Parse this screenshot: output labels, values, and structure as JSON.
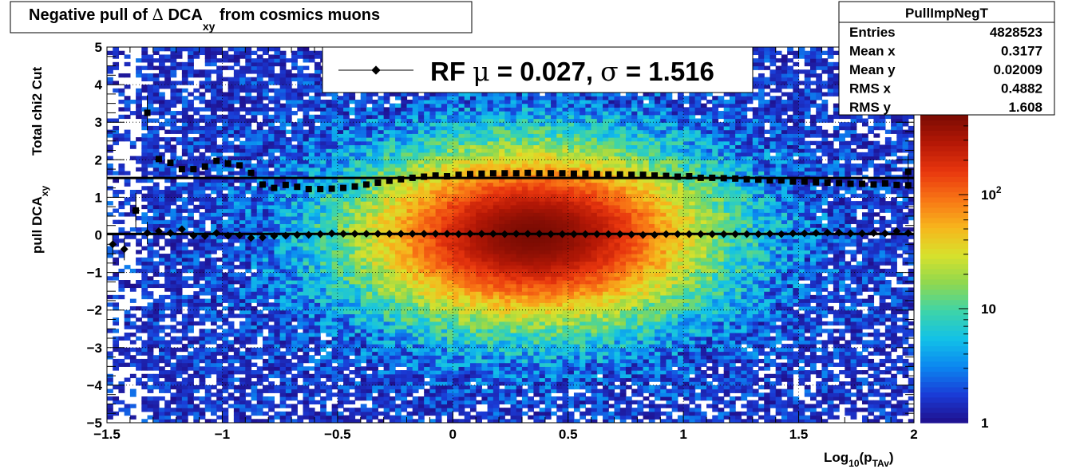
{
  "title": {
    "prefix": "Negative pull of ",
    "delta": "Δ",
    "dca": " DCA",
    "sub": "xy",
    "suffix": " from cosmics muons"
  },
  "stats": {
    "name": "PullImpNegT",
    "rows": [
      {
        "label": "Entries",
        "value": "4828523"
      },
      {
        "label": "Mean x",
        "value": "0.3177"
      },
      {
        "label": "Mean y",
        "value": "0.02009"
      },
      {
        "label": "RMS x",
        "value": "0.4882"
      },
      {
        "label": "RMS y",
        "value": "1.608"
      }
    ]
  },
  "legend": {
    "rf": "RF ",
    "mu": "μ",
    "mid": " =  0.027, ",
    "sigma": "σ",
    "end": " =   1.516"
  },
  "ylabel": {
    "line1": "Total chi2 Cut",
    "line2": "pull DCA",
    "line2_sub": "xy"
  },
  "xlabel": {
    "main": "Log",
    "sub1": "10",
    "p": "(p",
    "sub2": "TAv",
    "close": ")"
  },
  "colorbar": {
    "labels": [
      {
        "text": "1",
        "value": 1
      },
      {
        "text": "10",
        "value": 10
      },
      {
        "text": "10",
        "value": 100,
        "exp": "2"
      }
    ],
    "colors": [
      "#1f0f8c",
      "#1a3bd6",
      "#0b86f0",
      "#12c1e8",
      "#3ed4a8",
      "#8fd84f",
      "#d8e12c",
      "#f7b51c",
      "#f87415",
      "#e8360e",
      "#b51806",
      "#7a0b03"
    ]
  },
  "chart_data": {
    "type": "heatmap",
    "xlim": [
      -1.5,
      2
    ],
    "ylim": [
      -5,
      5
    ],
    "xticks": [
      {
        "v": -1.5,
        "t": "−1.5"
      },
      {
        "v": -1,
        "t": "−1"
      },
      {
        "v": -0.5,
        "t": "−0.5"
      },
      {
        "v": 0,
        "t": "0"
      },
      {
        "v": 0.5,
        "t": "0.5"
      },
      {
        "v": 1,
        "t": "1"
      },
      {
        "v": 1.5,
        "t": "1.5"
      },
      {
        "v": 2,
        "t": "2"
      }
    ],
    "yticks": [
      {
        "v": -5,
        "t": "−5"
      },
      {
        "v": -4,
        "t": "−4"
      },
      {
        "v": -3,
        "t": "−3"
      },
      {
        "v": -2,
        "t": "−2"
      },
      {
        "v": -1,
        "t": "−1"
      },
      {
        "v": 0,
        "t": "0"
      },
      {
        "v": 1,
        "t": "1"
      },
      {
        "v": 2,
        "t": "2"
      },
      {
        "v": 3,
        "t": "3"
      },
      {
        "v": 4,
        "t": "4"
      },
      {
        "v": 5,
        "t": "5"
      }
    ],
    "grid": true,
    "zscale": "log",
    "zlim": [
      1,
      500
    ],
    "sigma_points": {
      "x": [
        -1.275,
        -1.225,
        -1.175,
        -1.125,
        -1.075,
        -1.025,
        -0.975,
        -0.925,
        -0.875,
        -0.825,
        -0.775,
        -0.725,
        -0.675,
        -0.625,
        -0.575,
        -0.525,
        -0.475,
        -0.425,
        -0.375,
        -0.325,
        -0.275,
        -0.225,
        -0.175,
        -0.125,
        -0.075,
        -0.025,
        0.025,
        0.075,
        0.125,
        0.175,
        0.225,
        0.275,
        0.325,
        0.375,
        0.425,
        0.475,
        0.525,
        0.575,
        0.625,
        0.675,
        0.725,
        0.775,
        0.825,
        0.875,
        0.925,
        0.975,
        1.025,
        1.075,
        1.125,
        1.175,
        1.225,
        1.275,
        1.325,
        1.375,
        1.425,
        1.475,
        1.525,
        1.575,
        1.625,
        1.675,
        1.725,
        1.775,
        1.825,
        1.875,
        1.925,
        1.975
      ],
      "y": [
        2.02,
        1.92,
        1.75,
        1.75,
        1.82,
        1.97,
        1.9,
        1.85,
        1.65,
        1.34,
        1.25,
        1.33,
        1.28,
        1.22,
        1.22,
        1.23,
        1.25,
        1.29,
        1.34,
        1.39,
        1.44,
        1.48,
        1.52,
        1.55,
        1.58,
        1.56,
        1.6,
        1.62,
        1.63,
        1.64,
        1.64,
        1.64,
        1.65,
        1.64,
        1.64,
        1.64,
        1.63,
        1.63,
        1.62,
        1.61,
        1.61,
        1.6,
        1.6,
        1.58,
        1.57,
        1.55,
        1.56,
        1.52,
        1.52,
        1.51,
        1.5,
        1.48,
        1.47,
        1.45,
        1.45,
        1.42,
        1.42,
        1.4,
        1.39,
        1.38,
        1.36,
        1.36,
        1.34,
        1.37,
        1.33,
        1.32
      ],
      "extra": [
        {
          "x": -1.325,
          "y": 3.25
        },
        {
          "x": -1.375,
          "y": 0.65
        },
        {
          "x": 1.975,
          "y": 1.68
        }
      ]
    },
    "sigma_fit": 1.516,
    "mu_points": {
      "x": [
        -1.475,
        -1.425,
        -1.375,
        -1.325,
        -1.275,
        -1.225,
        -1.175,
        -1.125,
        -1.075,
        -1.025,
        -0.975,
        -0.925,
        -0.875,
        -0.825,
        -0.775,
        -0.725,
        -0.675,
        -0.625,
        -0.575,
        -0.525,
        -0.475,
        -0.425,
        -0.375,
        -0.325,
        -0.275,
        -0.225,
        -0.175,
        -0.125,
        -0.075,
        -0.025,
        0.025,
        0.075,
        0.125,
        0.175,
        0.225,
        0.275,
        0.325,
        0.375,
        0.425,
        0.475,
        0.525,
        0.575,
        0.625,
        0.675,
        0.725,
        0.775,
        0.825,
        0.875,
        0.925,
        0.975,
        1.025,
        1.075,
        1.125,
        1.175,
        1.225,
        1.275,
        1.325,
        1.375,
        1.425,
        1.475,
        1.525,
        1.575,
        1.625,
        1.675,
        1.725,
        1.775,
        1.825,
        1.875,
        1.925,
        1.975
      ],
      "y": [
        -0.25,
        -0.38,
        0.65,
        0.05,
        0.1,
        0.05,
        0.15,
        -0.02,
        -0.03,
        0.05,
        -0.02,
        -0.01,
        -0.08,
        -0.07,
        -0.03,
        -0.02,
        0.0,
        0.0,
        0.02,
        0.04,
        0.03,
        0.03,
        0.03,
        0.03,
        0.03,
        0.03,
        0.03,
        0.03,
        0.03,
        0.03,
        0.02,
        0.03,
        0.03,
        0.03,
        0.02,
        0.03,
        0.03,
        0.03,
        0.02,
        0.02,
        0.02,
        0.02,
        0.02,
        0.02,
        0.02,
        0.01,
        0.0,
        0.0,
        0.02,
        0.02,
        0.02,
        0.02,
        0.02,
        0.02,
        0.02,
        0.02,
        0.02,
        0.03,
        0.02,
        0.04,
        0.04,
        0.05,
        0.06,
        0.06,
        0.04,
        0.04,
        0.05,
        0.04,
        0.1,
        0.05
      ]
    },
    "mu_fit": 0.027
  }
}
